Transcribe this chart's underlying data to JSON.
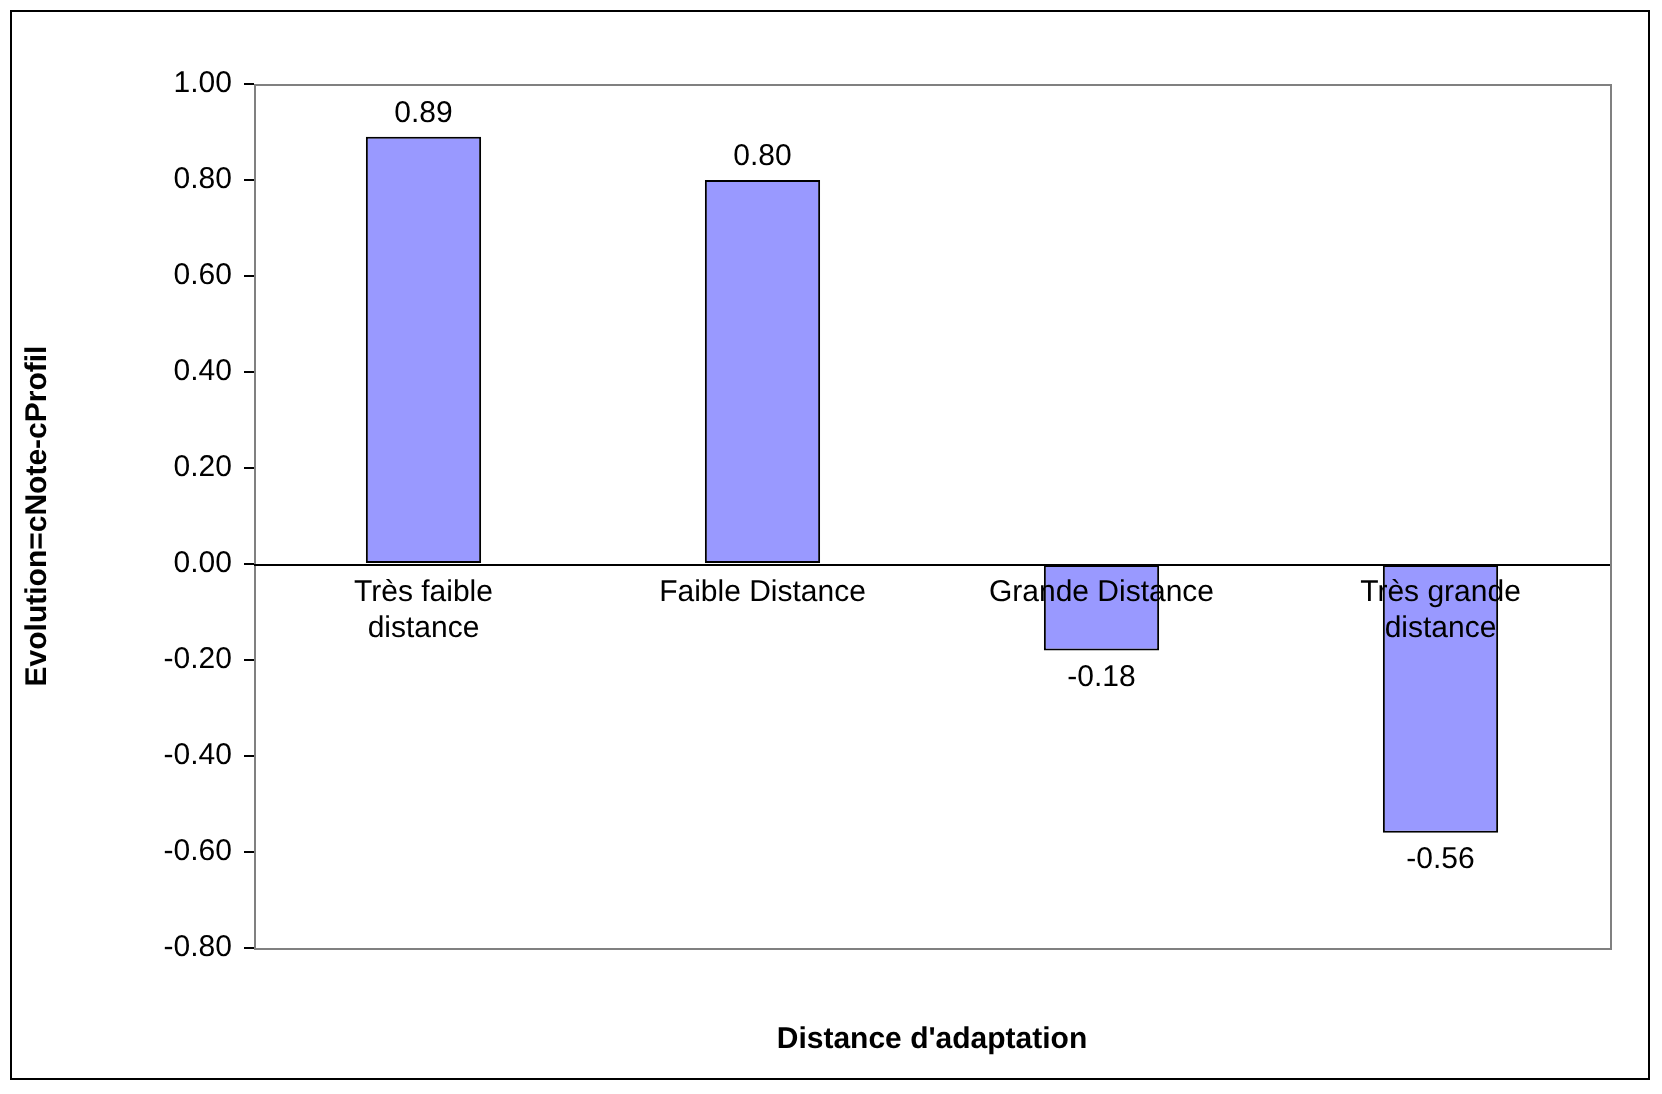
{
  "chart_data": {
    "type": "bar",
    "xlabel": "Distance d'adaptation",
    "ylabel": "Evolution=cNote-cProfil",
    "categories": [
      "Très faible distance",
      "Faible Distance",
      "Grande Distance",
      "Très grande distance"
    ],
    "values": [
      0.89,
      0.8,
      -0.18,
      -0.56
    ],
    "value_labels": [
      "0.89",
      "0.80",
      "-0.18",
      "-0.56"
    ],
    "color": "#9999ff",
    "ylim": [
      -0.8,
      1.0
    ],
    "yticks": [
      {
        "value": -0.8,
        "label": "-0.80"
      },
      {
        "value": -0.6,
        "label": "-0.60"
      },
      {
        "value": -0.4,
        "label": "-0.40"
      },
      {
        "value": -0.2,
        "label": "-0.20"
      },
      {
        "value": 0,
        "label": "0.00"
      },
      {
        "value": 0.2,
        "label": "0.20"
      },
      {
        "value": 0.4,
        "label": "0.40"
      },
      {
        "value": 0.6,
        "label": "0.60"
      },
      {
        "value": 0.8,
        "label": "0.80"
      },
      {
        "value": 1.0,
        "label": "1.00"
      }
    ],
    "grid": false,
    "legend": false
  }
}
